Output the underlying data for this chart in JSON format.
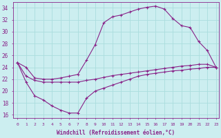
{
  "xlabel": "Windchill (Refroidissement éolien,°C)",
  "background_color": "#cceef0",
  "grid_color": "#aadddd",
  "line_color": "#882288",
  "xlim": [
    -0.5,
    23.3
  ],
  "ylim": [
    15.5,
    35.0
  ],
  "yticks": [
    16,
    18,
    20,
    22,
    24,
    26,
    28,
    30,
    32,
    34
  ],
  "xticks": [
    0,
    1,
    2,
    3,
    4,
    5,
    6,
    7,
    8,
    9,
    10,
    11,
    12,
    13,
    14,
    15,
    16,
    17,
    18,
    19,
    20,
    21,
    22,
    23
  ],
  "series": [
    {
      "x": [
        0,
        1,
        2,
        3,
        4,
        5,
        6,
        7,
        8,
        9,
        10,
        11,
        12,
        13,
        14,
        15,
        16,
        17,
        18,
        19,
        20,
        21,
        22,
        23
      ],
      "y": [
        24.8,
        21.5,
        19.2,
        18.5,
        17.5,
        16.8,
        16.3,
        16.3,
        18.8,
        20.0,
        20.5,
        21.0,
        21.5,
        22.0,
        22.5,
        22.8,
        23.0,
        23.2,
        23.4,
        23.5,
        23.7,
        23.8,
        24.0,
        24.0
      ]
    },
    {
      "x": [
        0,
        1,
        2,
        3,
        4,
        5,
        6,
        7,
        8,
        9,
        10,
        11,
        12,
        13,
        14,
        15,
        16,
        17,
        18,
        19,
        20,
        21,
        22,
        23
      ],
      "y": [
        24.8,
        22.5,
        21.8,
        21.5,
        21.5,
        21.5,
        21.5,
        21.5,
        21.8,
        22.0,
        22.3,
        22.6,
        22.8,
        23.0,
        23.2,
        23.4,
        23.6,
        23.8,
        24.0,
        24.2,
        24.3,
        24.5,
        24.5,
        24.0
      ]
    },
    {
      "x": [
        0,
        1,
        2,
        3,
        4,
        5,
        6,
        7,
        8,
        9,
        10,
        11,
        12,
        13,
        14,
        15,
        16,
        17,
        18,
        19,
        20,
        21,
        22,
        23
      ],
      "y": [
        24.8,
        24.0,
        22.2,
        22.0,
        22.0,
        22.2,
        22.5,
        22.8,
        25.2,
        27.8,
        31.5,
        32.5,
        32.8,
        33.3,
        33.8,
        34.1,
        34.3,
        33.8,
        32.2,
        31.0,
        30.7,
        28.3,
        26.8,
        24.0
      ]
    }
  ]
}
